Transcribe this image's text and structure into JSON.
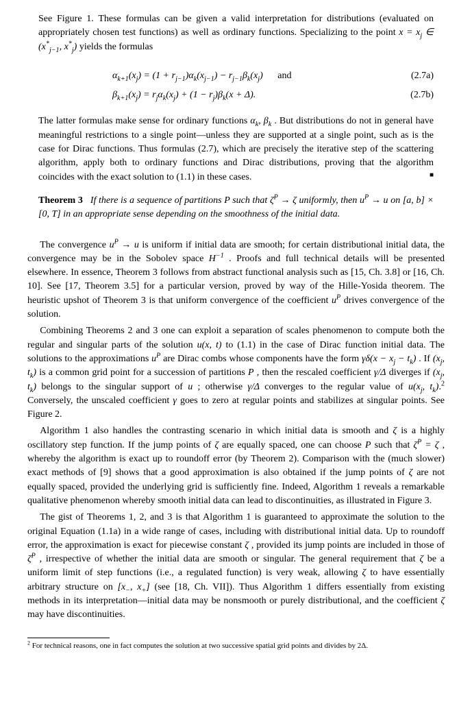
{
  "p1": "See Figure 1. These formulas can be given a valid interpretation for distributions (evaluated on appropriately chosen test functions) as well as ordinary functions. Specializing to the point ",
  "p1b": " yields the formulas",
  "eq1_lhs_a": "α",
  "eq1_lhs_sub": "k+1",
  "eq1_arg_x": "x",
  "eq1_arg_j": "j",
  "eq1_rhs_a": ") = (1 + ",
  "eq1_r": "r",
  "eq1_jm1": "j−1",
  "eq1_rhs_b": ")α",
  "eq1_k": "k",
  "eq1_rhs_c": "(",
  "eq1_rhs_d": ") − ",
  "eq1_rhs_e": "β",
  "eq1_rhs_f": ")",
  "eq1_and": "and",
  "eq1_label": "(2.7a)",
  "eq2_rhs_a": ") = ",
  "eq2_rhs_b": "α",
  "eq2_rhs_c": ") + (1 − ",
  "eq2_rhs_d": ")β",
  "eq2_rhs_e": " + Δ).",
  "eq2_label": "(2.7b)",
  "p2a": "The latter formulas make sense for ordinary functions ",
  "p2b": ". But distributions do not in general have meaningful restrictions to a single point—unless they are supported at a single point, such as is the case for Dirac functions. Thus formulas (2.7), which are precisely the iterative step of the scattering algorithm, apply both to ordinary functions and Dirac distributions, proving that the algorithm coincides with the exact solution to (1.1) in these cases.",
  "qed": "■",
  "thm_head": "Theorem 3",
  "thm_body_a": "If there is a sequence of partitions P such that ",
  "thm_body_b": " uniformly, then ",
  "thm_body_c": " in an appropriate sense depending on the smoothness of the initial data.",
  "p3a": "The convergence ",
  "p3b": " is uniform if initial data are smooth; for certain distributional initial data, the convergence may be in the Sobolev space ",
  "p3c": ". Proofs and full technical details will be presented elsewhere. In essence, Theorem 3 follows from abstract functional analysis such as [15, Ch. 3.8] or [16, Ch. 10]. See [17, Theorem 3.5] for a particular version, proved by way of the Hille-Yosida theorem. The heuristic upshot of Theorem 3 is that uniform convergence of the coefficient ",
  "p3d": " drives convergence of the solution.",
  "p4a": "Combining Theorems 2 and 3 one can exploit a separation of scales phenomenon to compute both the regular and singular parts of the solution ",
  "p4b": " to (1.1) in the case of Dirac function initial data. The solutions to the approximations ",
  "p4c": " are Dirac combs whose components have the form ",
  "p4d": ". If ",
  "p4e": " is a common grid point for a succession of partitions ",
  "p4f": ", then the rescaled coefficient ",
  "p4g": " diverges if ",
  "p4h": " belongs to the singular support of ",
  "p4i": "; otherwise ",
  "p4j": " converges to the regular value of ",
  "p4k": " Conversely, the unscaled coefficient ",
  "p4l": " goes to zero at regular points and stabilizes at singular points. See Figure 2.",
  "p5a": "Algorithm 1 also handles the contrasting scenario in which initial data is smooth and ",
  "p5b": " is a highly oscillatory step function. If the jump points of ",
  "p5c": " are equally spaced, one can choose ",
  "p5d": " such that ",
  "p5e": ", whereby the algorithm is exact up to roundoff error (by Theorem 2). Comparison with the (much slower) exact methods of [9] shows that a good approximation is also obtained if the jump points of ",
  "p5f": " are not equally spaced, provided the underlying grid is sufficiently fine. Indeed, Algorithm 1 reveals a remarkable qualitative phenomenon whereby smooth initial data can lead to discontinuities, as illustrated in Figure 3.",
  "p6a": "The gist of Theorems 1, 2, and 3 is that Algorithm 1 is guaranteed to approximate the solution to the original Equation (1.1a) in a wide range of cases, including with distributional initial data. Up to roundoff error, the approximation is exact for piecewise constant ",
  "p6b": ", provided its jump points are included in those of ",
  "p6c": ", irrespective of whether the initial data are smooth or singular. The general requirement that ",
  "p6d": " be a uniform limit of step functions (i.e., a regulated function) is very weak, allowing ",
  "p6e": " to have essentially arbitrary structure on ",
  "p6f": " (see [18, Ch. VII]). Thus Algorithm 1 differs essentially from existing methods in its interpretation—initial data may be nonsmooth or purely distributional, and the coefficient ",
  "p6g": " may have discontinuities.",
  "fn_marker": "2",
  "fn_text": " For technical reasons, one in fact computes the solution at two successive spatial grid points and divides by 2Δ.",
  "m_x_eq_xj": "x = x",
  "m_in": " ∈ (",
  "m_star": "*",
  "m_comma": ", ",
  "m_close": ")",
  "m_alpha_k": "α",
  "m_beta_k": ", β",
  "m_zeta": "ζ",
  "m_P": "P",
  "m_arrow": " → ",
  "m_uP": "u",
  "m_u": "u",
  "m_on": " on ",
  "m_interval": "[a, b] × [0, T]",
  "m_Hm1": "H",
  "m_m1": "−1",
  "m_uxt": "u(x, t)",
  "m_gdelta": "γδ(x − x",
  "m_sub_j": "j",
  "m_minus_t": " − t",
  "m_sub_k": "k",
  "m_tuple_open": "(x",
  "m_tuple_mid": ", t",
  "m_gamma_delta": "γ/Δ",
  "m_uxjtk": "u(x",
  "m_dot2": ".",
  "m_gamma": "γ",
  "m_zeta_eq": " = ζ",
  "m_interval2_a": "[x",
  "m_minus": "−",
  "m_interval2_b": ", x",
  "m_plus": "+",
  "m_interval2_c": "]"
}
